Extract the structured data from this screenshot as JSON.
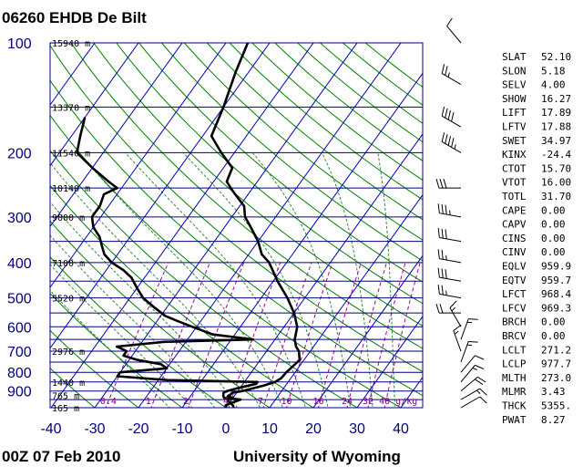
{
  "header": {
    "title": "06260 EHDB De Bilt"
  },
  "footer": {
    "run": "00Z 07 Feb 2010",
    "source": "University of Wyoming"
  },
  "chart_data": {
    "type": "skew-t log-p sounding diagram",
    "pressure_levels": [
      "100",
      "200",
      "300",
      "400",
      "500",
      "600",
      "700",
      "800",
      "900"
    ],
    "pressure_values": [
      100,
      200,
      300,
      400,
      500,
      600,
      700,
      800,
      900
    ],
    "temperature_ticks": [
      "-40",
      "-30",
      "-20",
      "-10",
      "0",
      "10",
      "20",
      "30",
      "40"
    ],
    "temperature_values": [
      -40,
      -30,
      -20,
      -10,
      0,
      10,
      20,
      30,
      40
    ],
    "height_labels": [
      {
        "p": 100,
        "text": "15940 m"
      },
      {
        "p": 150,
        "text": "13370 m"
      },
      {
        "p": 200,
        "text": "11540 m"
      },
      {
        "p": 250,
        "text": "10140 m"
      },
      {
        "p": 300,
        "text": "9000 m"
      },
      {
        "p": 400,
        "text": "7100 m"
      },
      {
        "p": 500,
        "text": "5520 m"
      },
      {
        "p": 700,
        "text": "2976 m"
      },
      {
        "p": 850,
        "text": "1440 m"
      },
      {
        "p": 925,
        "text": "765 m"
      },
      {
        "p": 1000,
        "text": "165 m"
      }
    ],
    "mixing_ratio_labels": [
      "0.4",
      "1",
      "2",
      "4",
      "7",
      "10",
      "16",
      "24",
      "32",
      "40 g/kg"
    ],
    "temperature_profile": [
      [
        1000,
        1.8
      ],
      [
        985,
        1.2
      ],
      [
        960,
        -0.5
      ],
      [
        950,
        -1
      ],
      [
        940,
        0
      ],
      [
        930,
        -1.5
      ],
      [
        925,
        -1.2
      ],
      [
        910,
        -1
      ],
      [
        900,
        1
      ],
      [
        870,
        5
      ],
      [
        850,
        7
      ],
      [
        830,
        7.8
      ],
      [
        800,
        8
      ],
      [
        770,
        8.5
      ],
      [
        740,
        9
      ],
      [
        710,
        7.8
      ],
      [
        700,
        7.4
      ],
      [
        680,
        6
      ],
      [
        650,
        4.5
      ],
      [
        600,
        3
      ],
      [
        550,
        0
      ],
      [
        500,
        -4
      ],
      [
        450,
        -9
      ],
      [
        400,
        -14
      ],
      [
        380,
        -17
      ],
      [
        350,
        -20
      ],
      [
        320,
        -24
      ],
      [
        300,
        -27
      ],
      [
        280,
        -29
      ],
      [
        260,
        -33
      ],
      [
        250,
        -35
      ],
      [
        240,
        -37
      ],
      [
        220,
        -38
      ],
      [
        200,
        -43
      ],
      [
        180,
        -48
      ],
      [
        150,
        -50
      ],
      [
        120,
        -53
      ],
      [
        100,
        -55
      ]
    ],
    "dewpoint_profile": [
      [
        1000,
        0
      ],
      [
        985,
        -0.5
      ],
      [
        970,
        0.5
      ],
      [
        950,
        2
      ],
      [
        940,
        -2
      ],
      [
        930,
        -2.5
      ],
      [
        910,
        -3
      ],
      [
        900,
        -2.5
      ],
      [
        880,
        0
      ],
      [
        860,
        3
      ],
      [
        850,
        3
      ],
      [
        840,
        -18
      ],
      [
        820,
        -30
      ],
      [
        800,
        -30
      ],
      [
        780,
        -20
      ],
      [
        760,
        -22
      ],
      [
        740,
        -28
      ],
      [
        720,
        -32
      ],
      [
        700,
        -32
      ],
      [
        680,
        -35
      ],
      [
        660,
        -25
      ],
      [
        650,
        -5
      ],
      [
        630,
        -15
      ],
      [
        600,
        -21
      ],
      [
        580,
        -25
      ],
      [
        560,
        -29
      ],
      [
        530,
        -33
      ],
      [
        500,
        -37
      ],
      [
        470,
        -40
      ],
      [
        440,
        -43
      ],
      [
        420,
        -46
      ],
      [
        400,
        -50
      ],
      [
        380,
        -53
      ],
      [
        360,
        -55
      ],
      [
        340,
        -57
      ],
      [
        320,
        -60
      ],
      [
        300,
        -62
      ],
      [
        280,
        -62
      ],
      [
        260,
        -63
      ],
      [
        250,
        -61
      ],
      [
        240,
        -64
      ],
      [
        220,
        -70
      ],
      [
        200,
        -76
      ],
      [
        180,
        -78
      ],
      [
        160,
        -80
      ]
    ],
    "wind_barbs": [
      {
        "p": 100,
        "dir": 320,
        "kt": 10
      },
      {
        "p": 130,
        "dir": 300,
        "kt": 25
      },
      {
        "p": 170,
        "dir": 300,
        "kt": 40
      },
      {
        "p": 200,
        "dir": 300,
        "kt": 45
      },
      {
        "p": 250,
        "dir": 270,
        "kt": 30
      },
      {
        "p": 300,
        "dir": 280,
        "kt": 35
      },
      {
        "p": 350,
        "dir": 280,
        "kt": 30
      },
      {
        "p": 400,
        "dir": 280,
        "kt": 25
      },
      {
        "p": 450,
        "dir": 280,
        "kt": 30
      },
      {
        "p": 500,
        "dir": 280,
        "kt": 25
      },
      {
        "p": 550,
        "dir": 270,
        "kt": 20
      },
      {
        "p": 600,
        "dir": 330,
        "kt": 15
      },
      {
        "p": 650,
        "dir": 20,
        "kt": 15
      },
      {
        "p": 700,
        "dir": 340,
        "kt": 15
      },
      {
        "p": 750,
        "dir": 20,
        "kt": 15
      },
      {
        "p": 800,
        "dir": 40,
        "kt": 10
      },
      {
        "p": 850,
        "dir": 40,
        "kt": 15
      },
      {
        "p": 900,
        "dir": 50,
        "kt": 20
      },
      {
        "p": 950,
        "dir": 60,
        "kt": 15
      },
      {
        "p": 1000,
        "dir": 60,
        "kt": 10
      }
    ],
    "indices": [
      {
        "name": "SLAT",
        "value": "52.10"
      },
      {
        "name": "SLON",
        "value": "5.18"
      },
      {
        "name": "SELV",
        "value": "4.00"
      },
      {
        "name": "SHOW",
        "value": "16.27"
      },
      {
        "name": "LIFT",
        "value": "17.89"
      },
      {
        "name": "LFTV",
        "value": "17.88"
      },
      {
        "name": "SWET",
        "value": "34.97"
      },
      {
        "name": "KINX",
        "value": "-24.4"
      },
      {
        "name": "CTOT",
        "value": "15.70"
      },
      {
        "name": "VTOT",
        "value": "16.00"
      },
      {
        "name": "TOTL",
        "value": "31.70"
      },
      {
        "name": "CAPE",
        "value": "0.00"
      },
      {
        "name": "CAPV",
        "value": "0.00"
      },
      {
        "name": "CINS",
        "value": "0.00"
      },
      {
        "name": "CINV",
        "value": "0.00"
      },
      {
        "name": "EQLV",
        "value": "959.9"
      },
      {
        "name": "EQTV",
        "value": "959.7"
      },
      {
        "name": "LFCT",
        "value": "968.4"
      },
      {
        "name": "LFCV",
        "value": "969.3"
      },
      {
        "name": "BRCH",
        "value": "0.00"
      },
      {
        "name": "BRCV",
        "value": "0.00"
      },
      {
        "name": "LCLT",
        "value": "271.2"
      },
      {
        "name": "LCLP",
        "value": "977.7"
      },
      {
        "name": "MLTH",
        "value": "273.0"
      },
      {
        "name": "MLMR",
        "value": "3.43"
      },
      {
        "name": "THCK",
        "value": "5355."
      },
      {
        "name": "PWAT",
        "value": "8.27"
      }
    ],
    "colors": {
      "isobar": "#000080",
      "isotherm": "#0000c0",
      "dry_adiabat": "#008000",
      "moist_adiabat": "#3a8a3a",
      "mixing_ratio": "#a000a0",
      "profile": "#000000"
    }
  }
}
